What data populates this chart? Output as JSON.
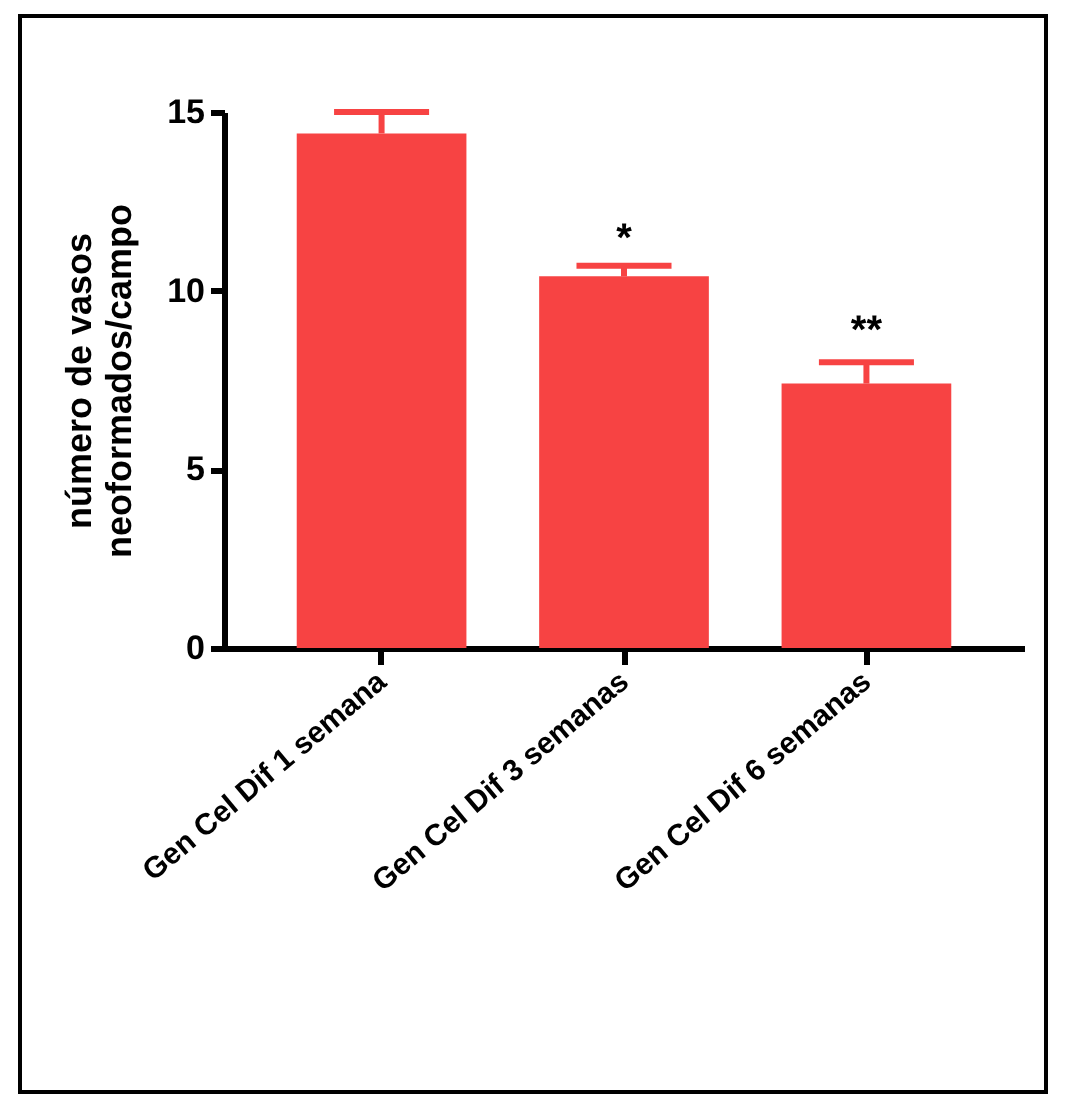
{
  "chart_data": {
    "type": "bar",
    "ylabel": "número de vasos\nneoformados/campo",
    "categories": [
      "Gen Cel Dif 1 semana",
      "Gen Cel Dif 3 semanas",
      "Gen Cel Dif 6 semanas"
    ],
    "values": [
      14.4,
      10.4,
      7.4
    ],
    "errors": [
      0.6,
      0.3,
      0.6
    ],
    "color": "#f74343",
    "ylim": [
      0,
      15
    ],
    "yticks": [
      0,
      5,
      10,
      15
    ],
    "grid": false,
    "annotations": [
      {
        "text": "*",
        "x": "Gen Cel Dif 3 semanas",
        "y": 10.9
      },
      {
        "text": "**",
        "x": "Gen Cel Dif 6 semanas",
        "y": 8.3
      }
    ]
  }
}
